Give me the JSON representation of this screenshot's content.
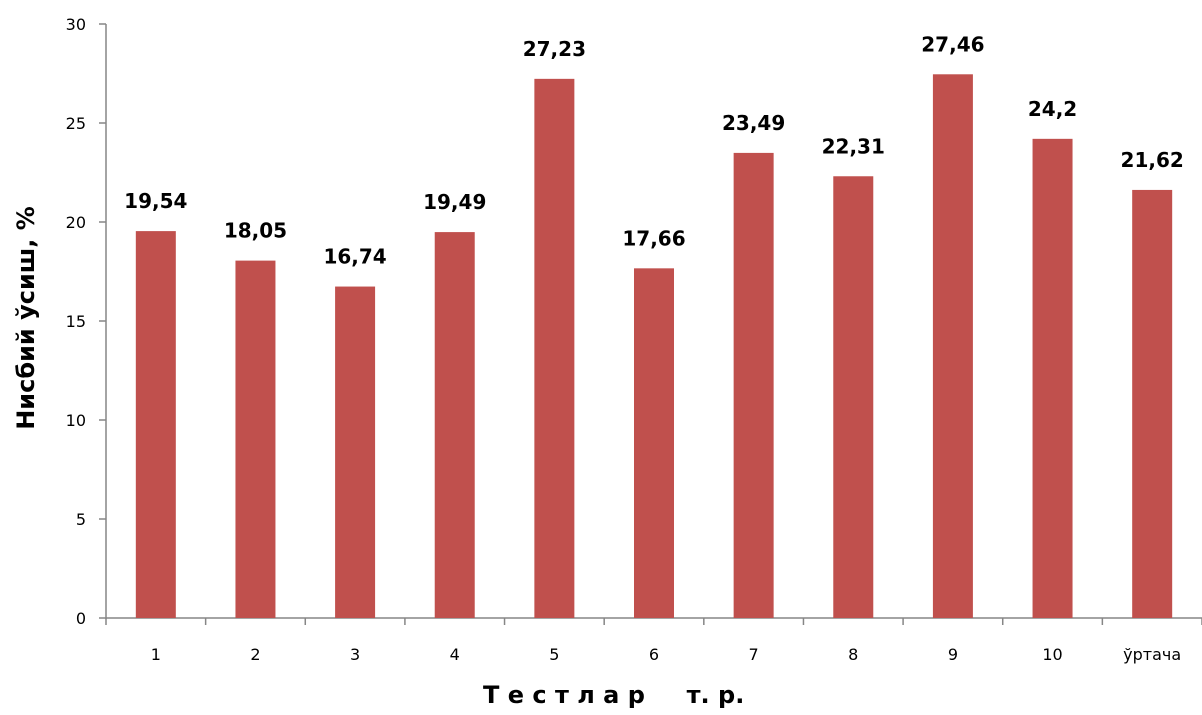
{
  "chart_data": {
    "type": "bar",
    "categories": [
      "1",
      "2",
      "3",
      "4",
      "5",
      "6",
      "7",
      "8",
      "9",
      "10",
      "ўртача"
    ],
    "values": [
      19.54,
      18.05,
      16.74,
      19.49,
      27.23,
      17.66,
      23.49,
      22.31,
      27.46,
      24.2,
      21.62
    ],
    "data_labels": [
      "19,54",
      "18,05",
      "16,74",
      "19,49",
      "27,23",
      "17,66",
      "23,49",
      "22,31",
      "27,46",
      "24,2",
      "21,62"
    ],
    "title": "",
    "xlabel": "Т е с т л а р     т. р.",
    "ylabel": "Нисбий ўсиш, %",
    "ylim": [
      0,
      30
    ],
    "yticks": [
      "0",
      "5",
      "10",
      "15",
      "20",
      "25",
      "30"
    ],
    "grid": false,
    "legend": "none",
    "bar_color": "#c0504d",
    "axis_color": "#868686"
  }
}
